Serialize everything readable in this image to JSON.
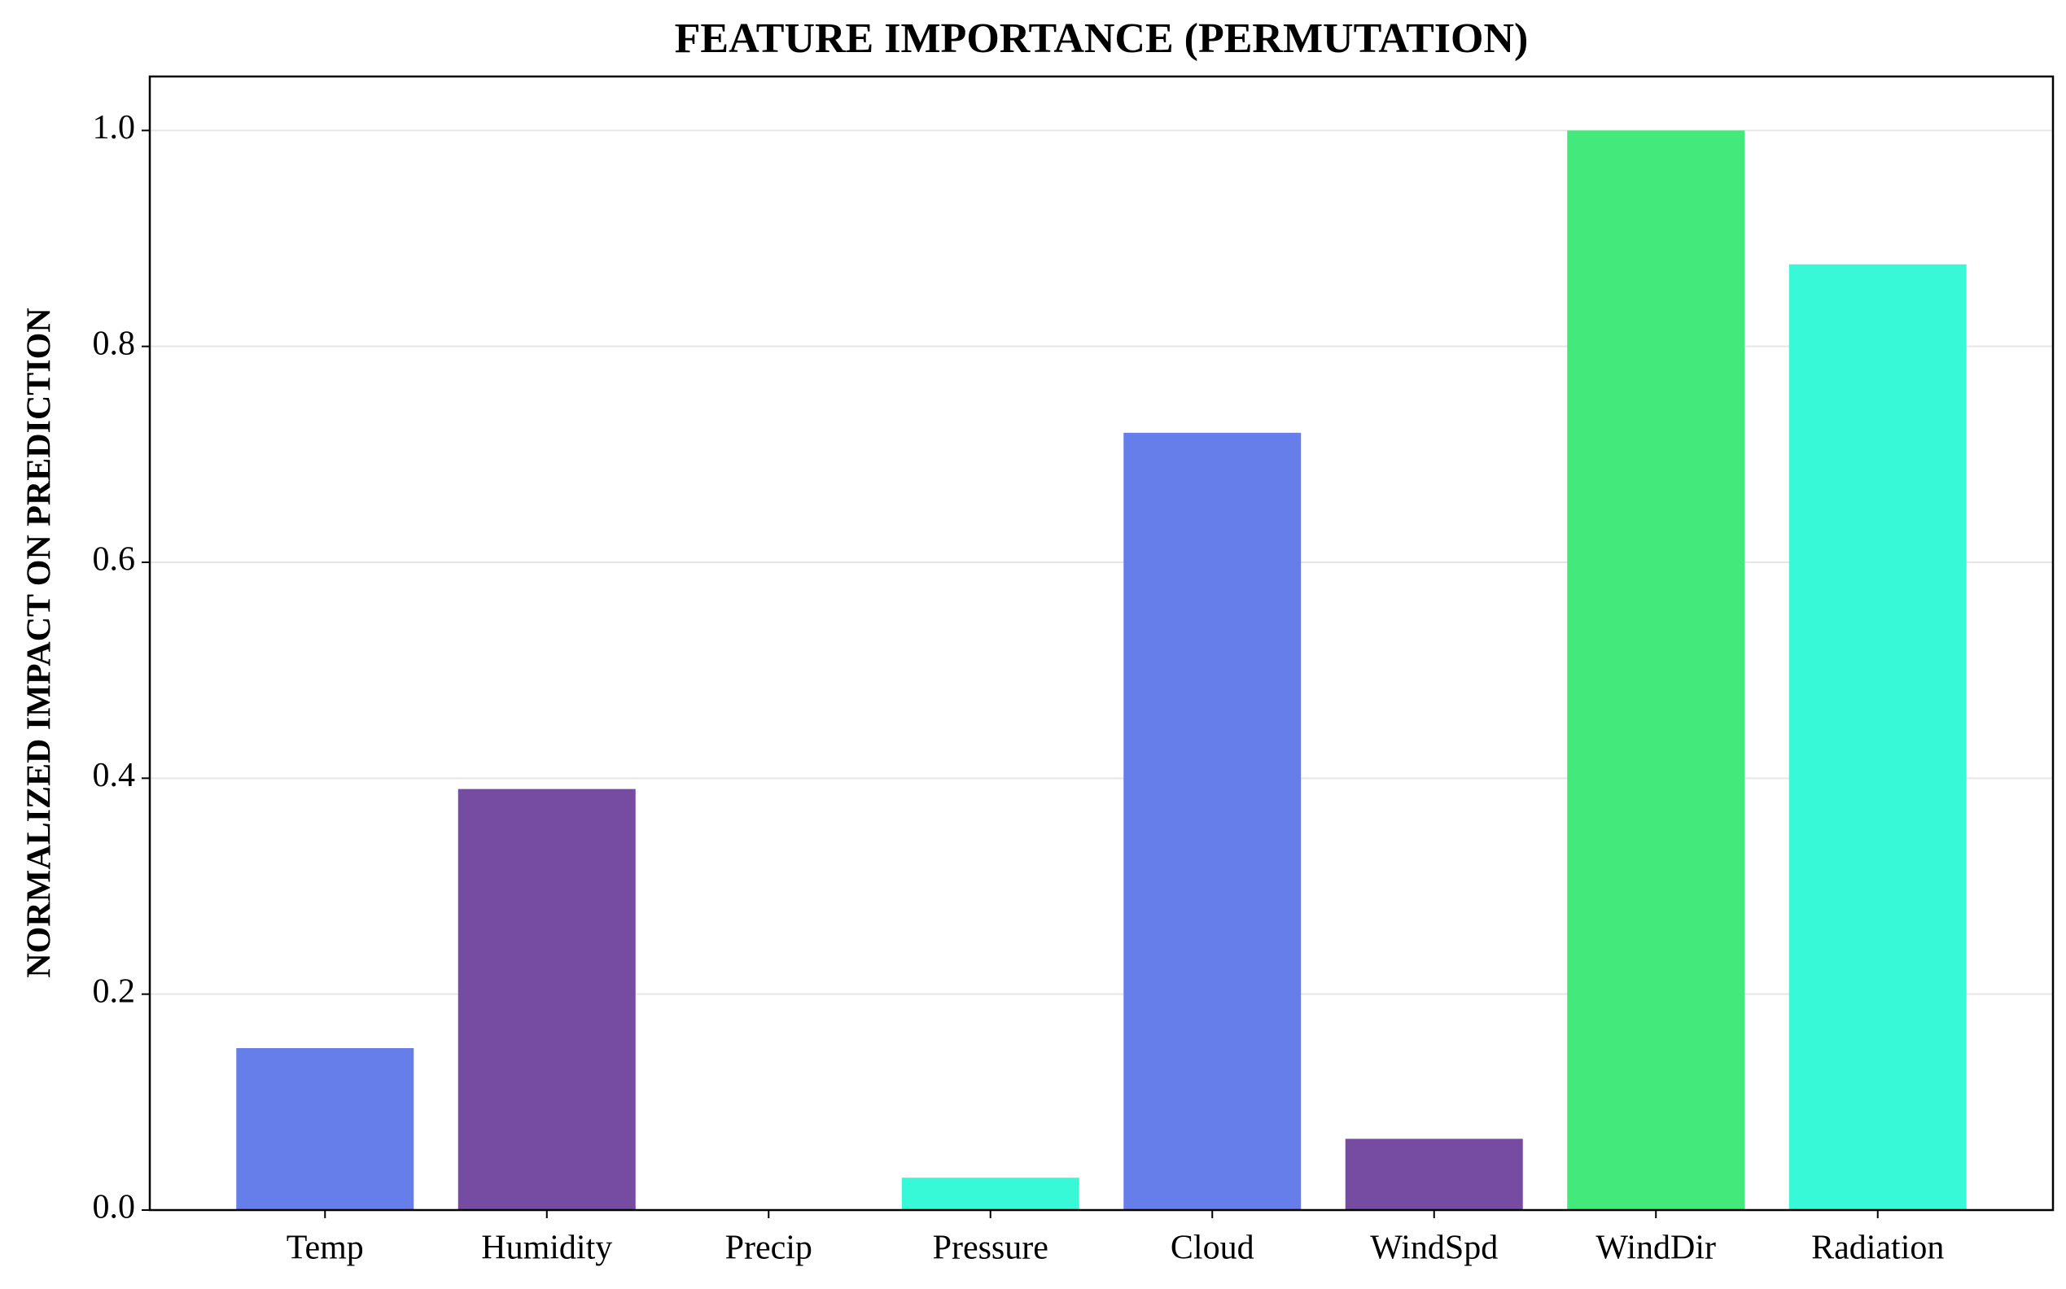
{
  "chart_data": {
    "type": "bar",
    "title": "FEATURE IMPORTANCE (PERMUTATION)",
    "y_label": "NORMALIZED IMPACT ON PREDICTION",
    "categories": [
      "Temp",
      "Humidity",
      "Precip",
      "Pressure",
      "Cloud",
      "WindSpd",
      "WindDir",
      "Radiation"
    ],
    "values": [
      0.15,
      0.39,
      0,
      0.03,
      0.72,
      0.066,
      1.0,
      0.876
    ],
    "colors": [
      "#667eea",
      "#764ba2",
      "#43e97b",
      "#38f9d7",
      "#667eea",
      "#764ba2",
      "#43e97b",
      "#38f9d7"
    ],
    "ylim": [
      0,
      1.05
    ],
    "yticks": [
      {
        "value": 0,
        "label": "0.0"
      },
      0.2,
      0.4,
      0.6,
      0.8,
      {
        "value": 1,
        "label": "1.0"
      }
    ],
    "grid": true
  }
}
